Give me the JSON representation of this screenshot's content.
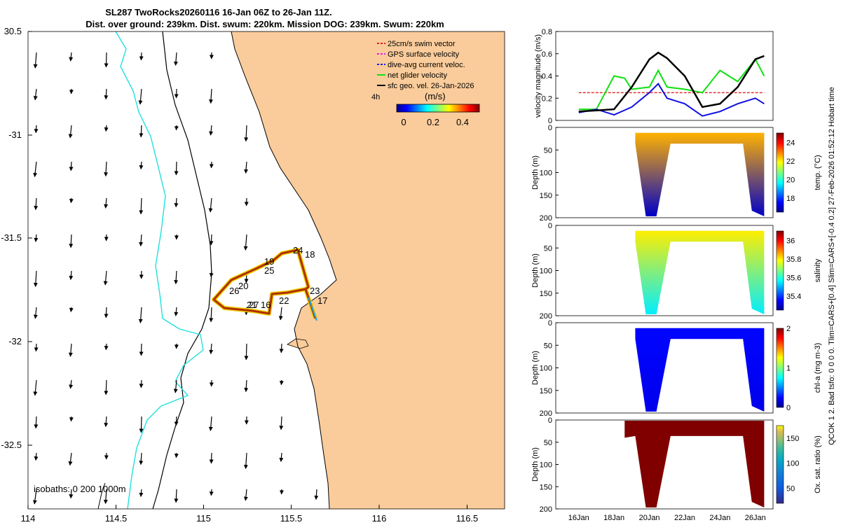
{
  "title": {
    "line1": "SL287 TwoRocks20260116 16-Jan 06Z to 26-Jan 11Z.",
    "line2": "Dist. over ground: 239km. Dist. swum: 220km. Mission DOG: 239km. Swum: 220km"
  },
  "side_label": "QCOK 1  2. Bad tsfo: 0  0  0  0. Tlim=CARS+[0.4]  Slim=CARS+[-0.4 0.2]  27-Feb-2026 01:52:12 Hobart time",
  "colors": {
    "land": "#FACC9B",
    "isobath_0": "#000000",
    "isobath_200": "#000000",
    "isobath_1000": "#22E0E0"
  },
  "map": {
    "x_ticks": [
      "114",
      "114.5",
      "115",
      "115.5",
      "116",
      "116.5"
    ],
    "y_ticks": [
      "30.5",
      "-31",
      "-31.5",
      "-32",
      "-32.5"
    ],
    "isobath_label": "isobaths: 0   200  1000m",
    "vector_scale_label": "4h",
    "legend": [
      {
        "label": "25cm/s swim vector",
        "color": "#E02020"
      },
      {
        "label": "GPS surface velocity",
        "color": "#E020E0"
      },
      {
        "label": "dive-avg current veloc.",
        "color": "#2020E0"
      },
      {
        "label": "net glider velocity",
        "color": "#10E010"
      },
      {
        "label": "sfc geo. vel. 26-Jan-2026",
        "color": "#000000"
      }
    ],
    "colorbar": {
      "title": "(m/s)",
      "ticks": [
        "0",
        "0.2",
        "0.4"
      ]
    },
    "day_labels": [
      "16",
      "17",
      "18",
      "19",
      "20",
      "21",
      "22",
      "23",
      "24",
      "25",
      "26",
      "27"
    ]
  },
  "chart_data": [
    {
      "type": "line",
      "title": "",
      "xlabel": "",
      "ylabel": "velocity magnitude (m/s)",
      "ylim": [
        0,
        0.8
      ],
      "xlim": [
        14,
        27
      ],
      "y_ticks": [
        "0",
        "0.2",
        "0.4",
        "0.6",
        "0.8"
      ],
      "series": [
        {
          "name": "sfc current (black)",
          "x": [
            16.0,
            17.0,
            18.0,
            19.0,
            20.0,
            20.5,
            21.0,
            22.0,
            23.0,
            24.0,
            25.0,
            26.0,
            26.5
          ],
          "values": [
            0.08,
            0.09,
            0.1,
            0.3,
            0.55,
            0.61,
            0.56,
            0.4,
            0.12,
            0.15,
            0.3,
            0.55,
            0.58
          ]
        },
        {
          "name": "dive-avg current (blue)",
          "x": [
            16.0,
            17.0,
            18.0,
            19.0,
            20.0,
            20.5,
            21.0,
            22.0,
            23.0,
            24.0,
            25.0,
            26.0,
            26.5
          ],
          "values": [
            0.07,
            0.1,
            0.05,
            0.12,
            0.25,
            0.33,
            0.2,
            0.15,
            0.04,
            0.08,
            0.15,
            0.2,
            0.15
          ]
        },
        {
          "name": "net glider velocity (green)",
          "x": [
            16.0,
            17.0,
            18.0,
            18.6,
            19.0,
            20.0,
            20.5,
            21.0,
            22.0,
            23.0,
            24.0,
            25.0,
            26.0,
            26.5
          ],
          "values": [
            0.1,
            0.1,
            0.4,
            0.38,
            0.28,
            0.3,
            0.45,
            0.3,
            0.28,
            0.25,
            0.45,
            0.35,
            0.55,
            0.4
          ]
        }
      ]
    },
    {
      "type": "heatmap",
      "ylabel": "Depth (m)",
      "colorbar_label": "temp. (°C)",
      "ylim": [
        200,
        0
      ],
      "y_ticks": [
        "0",
        "50",
        "100",
        "150",
        "200"
      ],
      "cbar_ticks": [
        "18",
        "20",
        "22",
        "24"
      ],
      "clim": [
        16.5,
        25
      ],
      "surface_value": 22.5,
      "deep_value": 17
    },
    {
      "type": "heatmap",
      "ylabel": "Depth (m)",
      "colorbar_label": "salinity",
      "ylim": [
        200,
        0
      ],
      "y_ticks": [
        "0",
        "50",
        "100",
        "150",
        "200"
      ],
      "cbar_ticks": [
        "35.4",
        "35.6",
        "35.8",
        "36"
      ],
      "clim": [
        35.25,
        36.1
      ],
      "surface_value": 35.8,
      "deep_value": 35.55
    },
    {
      "type": "heatmap",
      "ylabel": "Depth (m)",
      "colorbar_label": "chl-a  (mg m-3)",
      "ylim": [
        200,
        0
      ],
      "y_ticks": [
        "0",
        "50",
        "100",
        "150",
        "200"
      ],
      "cbar_ticks": [
        "0",
        "1",
        "2"
      ],
      "clim": [
        0,
        2
      ],
      "surface_value": 0.25,
      "deep_value": 0.2
    },
    {
      "type": "heatmap",
      "ylabel": "Depth (m)",
      "colorbar_label": "Ox. sat. ratio (%)",
      "ylim": [
        200,
        0
      ],
      "y_ticks": [
        "0",
        "50",
        "100",
        "150",
        "200"
      ],
      "cbar_ticks": [
        "50",
        "100",
        "150"
      ],
      "clim": [
        20,
        175
      ],
      "surface_value": 175,
      "deep_value": 175
    }
  ],
  "time_ticks": [
    "16Jan",
    "18Jan",
    "20Jan",
    "22Jan",
    "24Jan",
    "26Jan"
  ]
}
